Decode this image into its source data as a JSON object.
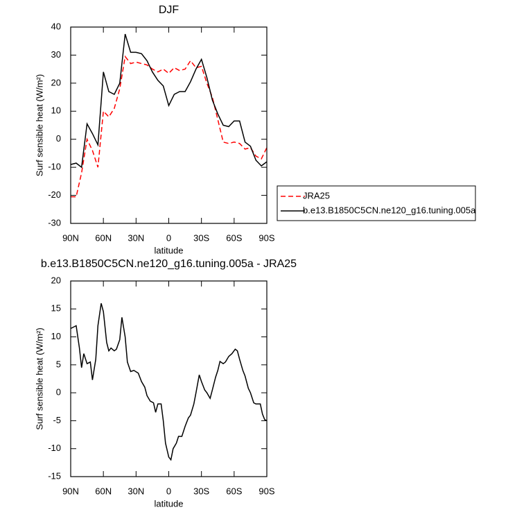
{
  "chart_data": [
    {
      "type": "line",
      "title": "DJF",
      "xlabel": "latitude",
      "ylabel": "Surf sensible heat (W/m²)",
      "x": [
        90,
        85,
        80,
        75,
        70,
        65,
        60,
        55,
        50,
        45,
        40,
        35,
        30,
        25,
        20,
        15,
        10,
        5,
        0,
        -5,
        -10,
        -15,
        -20,
        -25,
        -30,
        -35,
        -40,
        -45,
        -50,
        -55,
        -60,
        -65,
        -70,
        -75,
        -80,
        -85,
        -90
      ],
      "xlim": [
        90,
        -90
      ],
      "xticks": [
        {
          "value": 90,
          "label": "90N"
        },
        {
          "value": 60,
          "label": "60N"
        },
        {
          "value": 30,
          "label": "30N"
        },
        0,
        {
          "value": -30,
          "label": "30S"
        },
        {
          "value": -60,
          "label": "60S"
        },
        {
          "value": -90,
          "label": "90S"
        }
      ],
      "ylim": [
        -30,
        40
      ],
      "yticks": [
        -30,
        -20,
        -10,
        0,
        10,
        20,
        30,
        40
      ],
      "legend": "outside-right",
      "series": [
        {
          "name": "JRA25",
          "color": "#ff0000",
          "dashed": true,
          "values": [
            -20.5,
            -20.5,
            -12,
            0,
            -4,
            -10,
            10,
            8,
            11,
            18,
            29.5,
            27,
            27.5,
            27,
            26.5,
            25,
            24,
            25,
            23.5,
            25.5,
            24.5,
            25,
            28,
            25.5,
            26,
            20,
            15,
            7,
            -1,
            -1.5,
            -1,
            -1.5,
            -3.5,
            -3,
            -6,
            -7,
            -3
          ]
        },
        {
          "name": "b.e13.B1850C5CN.ne120_g16.tuning.005a",
          "color": "#000000",
          "dashed": false,
          "values": [
            -9,
            -8.5,
            -10,
            5.5,
            2,
            -2,
            24,
            17,
            16,
            20,
            37.5,
            31,
            31,
            30.5,
            28,
            24,
            21,
            19,
            12,
            16,
            17,
            17,
            20.5,
            25,
            28.5,
            22,
            14,
            9,
            5,
            4.5,
            6.5,
            6.5,
            -1,
            -2.5,
            -7.5,
            -9.5,
            -8
          ]
        }
      ]
    },
    {
      "type": "line",
      "title": "b.e13.B1850C5CN.ne120_g16.tuning.005a - JRA25",
      "xlabel": "latitude",
      "ylabel": "Surf sensible heat (W/m²)",
      "x": [
        90,
        85,
        82,
        80,
        78,
        75,
        72,
        70,
        67,
        65,
        62,
        60,
        57,
        55,
        53,
        50,
        48,
        45,
        43,
        40,
        38,
        35,
        32,
        28,
        25,
        22,
        20,
        17,
        14,
        12,
        10,
        7,
        5,
        3,
        0,
        -2,
        -4,
        -7,
        -9,
        -12,
        -15,
        -18,
        -20,
        -23,
        -25,
        -28,
        -30,
        -33,
        -35,
        -38,
        -40,
        -43,
        -45,
        -47,
        -50,
        -52,
        -55,
        -58,
        -61,
        -63,
        -65,
        -68,
        -70,
        -73,
        -75,
        -78,
        -80,
        -82,
        -84,
        -86,
        -88,
        -90
      ],
      "xlim": [
        90,
        -90
      ],
      "xticks": [
        {
          "value": 90,
          "label": "90N"
        },
        {
          "value": 60,
          "label": "60N"
        },
        {
          "value": 30,
          "label": "30N"
        },
        0,
        {
          "value": -30,
          "label": "30S"
        },
        {
          "value": -60,
          "label": "60S"
        },
        {
          "value": -90,
          "label": "90S"
        }
      ],
      "ylim": [
        -15,
        20
      ],
      "yticks": [
        -15,
        -10,
        -5,
        0,
        5,
        10,
        15,
        20
      ],
      "color": "#000000",
      "values": [
        11.5,
        12,
        8,
        4.5,
        7,
        5.2,
        5.5,
        2.3,
        6,
        12,
        16,
        14.5,
        9,
        7.5,
        8,
        7.5,
        7.8,
        9.5,
        13.5,
        10,
        5.5,
        3.8,
        4,
        3.5,
        2,
        1,
        -0.5,
        -1.5,
        -1.8,
        -3.5,
        -2,
        -2,
        -5,
        -9,
        -11.5,
        -12,
        -10,
        -9,
        -7.8,
        -7.8,
        -6,
        -4.5,
        -4,
        -2,
        0,
        3.2,
        2,
        0.5,
        0,
        -1,
        0.5,
        2.8,
        4,
        5.6,
        5.2,
        5.5,
        6.5,
        7,
        7.8,
        7.5,
        6,
        4,
        3,
        0.8,
        0,
        -1.8,
        -2,
        -2,
        -2,
        -3.8,
        -4.8,
        -5
      ]
    }
  ]
}
